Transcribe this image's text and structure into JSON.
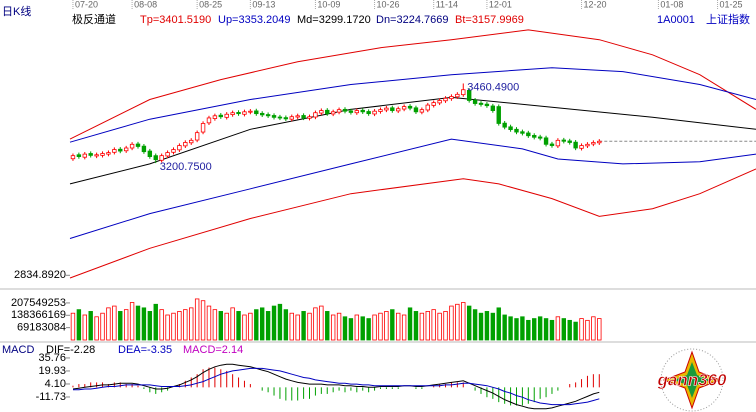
{
  "chart_data": {
    "type": "candlestick",
    "title": "日K线",
    "indicator": "极反通道",
    "legend": [
      {
        "label": "Tp=3401.5190",
        "color": "#e00000"
      },
      {
        "label": "Up=3353.2049",
        "color": "#0000c0"
      },
      {
        "label": "Md=3299.1720",
        "color": "#000000"
      },
      {
        "label": "Dn=3224.7669",
        "color": "#000080"
      },
      {
        "label": "Bt=3157.9969",
        "color": "#e00000"
      }
    ],
    "code": "1A0001",
    "name": "上证指数",
    "xlim": [
      -0.5,
      115.5
    ],
    "xticks": [
      {
        "value": 0,
        "label": "07-20"
      },
      {
        "value": 10,
        "label": "08-08"
      },
      {
        "value": 21,
        "label": "08-25"
      },
      {
        "value": 30,
        "label": "09-13"
      },
      {
        "value": 41,
        "label": "10-09"
      },
      {
        "value": 51,
        "label": "10-26"
      },
      {
        "value": 61,
        "label": "11-14"
      },
      {
        "value": 70,
        "label": "12-01"
      },
      {
        "value": 86,
        "label": "12-20"
      },
      {
        "value": 99,
        "label": "01-08"
      },
      {
        "value": 109,
        "label": "01-25"
      }
    ],
    "ylim": [
      2800,
      3700
    ],
    "yticks": [
      {
        "value": 2834.892,
        "label": "2834.8920"
      }
    ],
    "up_color": "#ff0000",
    "down_color": "#00a000",
    "open": [
      3215,
      3228,
      3220,
      3232,
      3224,
      3226,
      3230,
      3236,
      3246,
      3241,
      3250,
      3263,
      3256,
      3240,
      3225,
      3210,
      3224,
      3236,
      3244,
      3257,
      3267,
      3276,
      3302,
      3332,
      3346,
      3357,
      3350,
      3359,
      3366,
      3360,
      3367,
      3371,
      3363,
      3359,
      3356,
      3351,
      3349,
      3344,
      3351,
      3356,
      3347,
      3351,
      3364,
      3373,
      3361,
      3367,
      3376,
      3371,
      3365,
      3373,
      3369,
      3361,
      3369,
      3374,
      3381,
      3371,
      3377,
      3386,
      3381,
      3367,
      3374,
      3389,
      3397,
      3404,
      3411,
      3417,
      3424,
      3438,
      3406,
      3396,
      3393,
      3387,
      3385,
      3331,
      3319,
      3311,
      3303,
      3299,
      3291,
      3286,
      3283,
      3263,
      3257,
      3276,
      3273,
      3269,
      3249,
      3257,
      3263,
      3267
    ],
    "high": [
      3232,
      3235,
      3237,
      3239,
      3235,
      3239,
      3242,
      3252,
      3253,
      3257,
      3269,
      3270,
      3263,
      3247,
      3232,
      3232,
      3242,
      3252,
      3265,
      3275,
      3282,
      3307,
      3337,
      3355,
      3362,
      3364,
      3367,
      3372,
      3373,
      3375,
      3377,
      3378,
      3370,
      3366,
      3363,
      3358,
      3356,
      3359,
      3362,
      3363,
      3359,
      3372,
      3379,
      3380,
      3375,
      3382,
      3383,
      3378,
      3379,
      3380,
      3376,
      3377,
      3382,
      3387,
      3388,
      3385,
      3392,
      3393,
      3388,
      3382,
      3397,
      3405,
      3412,
      3419,
      3425,
      3432,
      3460.49,
      3445,
      3413,
      3403,
      3400,
      3394,
      3392,
      3338,
      3326,
      3318,
      3310,
      3306,
      3298,
      3293,
      3290,
      3270,
      3282,
      3283,
      3280,
      3276,
      3265,
      3269,
      3275,
      3279
    ],
    "low": [
      3208,
      3215,
      3213,
      3219,
      3217,
      3219,
      3223,
      3229,
      3233,
      3234,
      3243,
      3248,
      3231,
      3215,
      3200.75,
      3203,
      3217,
      3229,
      3237,
      3250,
      3260,
      3269,
      3295,
      3325,
      3339,
      3345,
      3343,
      3352,
      3355,
      3353,
      3360,
      3355,
      3351,
      3348,
      3343,
      3341,
      3338,
      3337,
      3344,
      3341,
      3340,
      3344,
      3357,
      3355,
      3354,
      3360,
      3363,
      3359,
      3358,
      3361,
      3355,
      3354,
      3362,
      3367,
      3365,
      3364,
      3370,
      3373,
      3361,
      3360,
      3367,
      3382,
      3390,
      3397,
      3404,
      3410,
      3417,
      3398,
      3388,
      3385,
      3381,
      3365,
      3323,
      3311,
      3303,
      3295,
      3291,
      3283,
      3278,
      3275,
      3255,
      3251,
      3250,
      3265,
      3261,
      3243,
      3242,
      3250,
      3256,
      3260
    ],
    "close": [
      3225,
      3222,
      3230,
      3226,
      3228,
      3232,
      3235,
      3245,
      3240,
      3250,
      3262,
      3255,
      3238,
      3222,
      3212,
      3225,
      3235,
      3245,
      3258,
      3268,
      3275,
      3300,
      3330,
      3348,
      3355,
      3352,
      3360,
      3365,
      3362,
      3368,
      3370,
      3362,
      3358,
      3355,
      3350,
      3348,
      3345,
      3352,
      3355,
      3348,
      3352,
      3365,
      3372,
      3362,
      3368,
      3375,
      3370,
      3366,
      3372,
      3368,
      3362,
      3370,
      3375,
      3380,
      3372,
      3378,
      3385,
      3380,
      3368,
      3375,
      3390,
      3398,
      3405,
      3412,
      3418,
      3425,
      3440,
      3405,
      3395,
      3392,
      3388,
      3372,
      3330,
      3318,
      3310,
      3302,
      3298,
      3290,
      3285,
      3282,
      3262,
      3258,
      3275,
      3272,
      3268,
      3250,
      3258,
      3262,
      3268,
      3272
    ],
    "bands": [
      {
        "color": "#e00000",
        "x": [
          -0.5,
          13,
          25,
          38,
          52,
          64,
          77,
          89,
          98,
          106,
          115.5
        ],
        "values": [
          3279,
          3408,
          3473,
          3531,
          3577,
          3603,
          3635,
          3603,
          3554,
          3489,
          3376
        ]
      },
      {
        "color": "#0000c0",
        "x": [
          -0.5,
          13,
          30,
          47,
          64,
          81,
          93,
          106,
          115.5
        ],
        "values": [
          3269,
          3344,
          3408,
          3457,
          3489,
          3512,
          3499,
          3457,
          3408
        ]
      },
      {
        "color": "#000000",
        "x": [
          -0.5,
          13,
          30,
          47,
          64,
          81,
          98,
          115.5
        ],
        "values": [
          3133,
          3198,
          3311,
          3376,
          3415,
          3383,
          3350,
          3311
        ]
      },
      {
        "color": "#0000c0",
        "x": [
          -0.5,
          13,
          30,
          47,
          64,
          76,
          82,
          93,
          106,
          115.5
        ],
        "values": [
          2955,
          3036,
          3117,
          3198,
          3279,
          3247,
          3214,
          3198,
          3205,
          3230
        ]
      },
      {
        "color": "#e00000",
        "x": [
          -0.5,
          13,
          30,
          47,
          66,
          72,
          81,
          89,
          98,
          106,
          115.5
        ],
        "values": [
          2826,
          2923,
          3020,
          3101,
          3150,
          3133,
          3085,
          3027,
          3052,
          3101,
          3182
        ]
      }
    ],
    "annotations": [
      {
        "x": 14,
        "value": 3200.75,
        "label": "3200.7500"
      },
      {
        "x": 66,
        "value": 3460.49,
        "label": "3460.4900"
      }
    ],
    "volume": {
      "ylim": [
        0,
        280000000
      ],
      "yticks": [
        207549253,
        138366169,
        69183084
      ],
      "values": [
        150000000.0,
        170000000.0,
        140000000.0,
        160000000.0,
        130000000.0,
        150000000.0,
        180000000.0,
        190000000.0,
        160000000.0,
        170000000.0,
        210000000.0,
        190000000.0,
        180000000.0,
        160000000.0,
        200000000.0,
        170000000.0,
        140000000.0,
        150000000.0,
        160000000.0,
        170000000.0,
        180000000.0,
        230000000.0,
        220000000.0,
        190000000.0,
        170000000.0,
        160000000.0,
        150000000.0,
        180000000.0,
        160000000.0,
        140000000.0,
        150000000.0,
        170000000.0,
        180000000.0,
        160000000.0,
        190000000.0,
        200000000.0,
        170000000.0,
        150000000.0,
        140000000.0,
        160000000.0,
        150000000.0,
        180000000.0,
        190000000.0,
        160000000.0,
        140000000.0,
        150000000.0,
        130000000.0,
        120000000.0,
        140000000.0,
        130000000.0,
        120000000.0,
        140000000.0,
        150000000.0,
        160000000.0,
        170000000.0,
        150000000.0,
        140000000.0,
        180000000.0,
        160000000.0,
        150000000.0,
        160000000.0,
        170000000.0,
        150000000.0,
        160000000.0,
        190000000.0,
        200000000.0,
        210000000.0,
        190000000.0,
        170000000.0,
        150000000.0,
        160000000.0,
        150000000.0,
        180000000.0,
        140000000.0,
        130000000.0,
        120000000.0,
        130000000.0,
        110000000.0,
        120000000.0,
        130000000.0,
        120000000.0,
        110000000.0,
        130000000.0,
        120000000.0,
        110000000.0,
        100000000.0,
        120000000.0,
        110000000.0,
        130000000.0,
        120000000.0
      ]
    },
    "macd": {
      "title": "MACD",
      "legend": [
        {
          "label": "DIF=-2.28",
          "color": "#000000"
        },
        {
          "label": "DEA=-3.35",
          "color": "#0000c0"
        },
        {
          "label": "MACD=2.14",
          "color": "#c000c0"
        }
      ],
      "ylim": [
        -30,
        43
      ],
      "yticks": [
        35.76,
        19.93,
        {
          "value": 4.1,
          "label": "4.10"
        },
        -11.73
      ],
      "dif": [
        -2,
        -1,
        0,
        1,
        2,
        3,
        3,
        4,
        5,
        5,
        5,
        4,
        2,
        0,
        -2,
        -2,
        -1,
        1,
        3,
        6,
        9,
        13,
        18,
        22,
        25,
        27,
        28,
        28,
        27,
        26,
        25,
        23,
        21,
        19,
        16,
        13,
        10,
        8,
        6,
        5,
        4,
        4,
        4,
        3,
        3,
        3,
        2,
        2,
        1,
        1,
        0,
        0,
        1,
        1,
        1,
        1,
        2,
        2,
        1,
        1,
        2,
        3,
        4,
        5,
        6,
        7,
        8,
        5,
        2,
        -1,
        -4,
        -7,
        -11,
        -15,
        -18,
        -21,
        -23,
        -25,
        -26,
        -26,
        -26,
        -25,
        -23,
        -21,
        -19,
        -17,
        -14,
        -11,
        -8,
        -6
      ],
      "dea": [
        -3,
        -3,
        -2,
        -2,
        -1,
        0,
        1,
        1,
        2,
        3,
        3,
        3,
        3,
        3,
        2,
        1,
        1,
        1,
        1,
        2,
        3,
        5,
        7,
        10,
        13,
        16,
        18,
        20,
        21,
        22,
        23,
        23,
        23,
        22,
        21,
        20,
        18,
        16,
        14,
        12,
        11,
        9,
        8,
        7,
        6,
        5,
        5,
        4,
        4,
        3,
        3,
        2,
        2,
        2,
        2,
        2,
        2,
        2,
        2,
        2,
        2,
        2,
        2,
        3,
        3,
        4,
        5,
        5,
        4,
        3,
        2,
        0,
        -2,
        -5,
        -7,
        -10,
        -12,
        -15,
        -17,
        -19,
        -20,
        -21,
        -21,
        -21,
        -21,
        -20,
        -19,
        -18,
        -16,
        -14
      ],
      "hist": [
        2,
        4,
        4,
        6,
        6,
        6,
        4,
        6,
        6,
        4,
        4,
        2,
        -2,
        -6,
        -8,
        -6,
        -4,
        0,
        4,
        8,
        12,
        16,
        22,
        24,
        24,
        22,
        20,
        16,
        12,
        8,
        4,
        0,
        -4,
        -6,
        -10,
        -14,
        -16,
        -16,
        -16,
        -14,
        -14,
        -10,
        -8,
        -8,
        -6,
        -4,
        -6,
        -4,
        -6,
        -4,
        -6,
        -4,
        -2,
        -2,
        -2,
        -2,
        0,
        0,
        -2,
        -2,
        0,
        2,
        4,
        4,
        6,
        6,
        6,
        0,
        -4,
        -8,
        -12,
        -14,
        -18,
        -20,
        -22,
        -22,
        -22,
        -20,
        -18,
        -14,
        -12,
        -8,
        -4,
        0,
        4,
        6,
        10,
        14,
        16,
        16
      ]
    },
    "logo": "gann360"
  }
}
